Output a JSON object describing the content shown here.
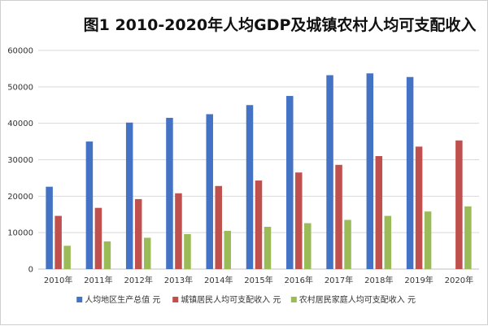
{
  "chart_data": {
    "type": "bar",
    "title": "图1 2010-2020年人均GDP及城镇农村人均可支配收入",
    "xlabel": "",
    "ylabel": "",
    "categories": [
      "2010年",
      "2011年",
      "2012年",
      "2013年",
      "2014年",
      "2015年",
      "2016年",
      "2017年",
      "2018年",
      "2019年",
      "2020年"
    ],
    "ylim": [
      0,
      60000
    ],
    "yticks": [
      0,
      10000,
      20000,
      30000,
      40000,
      50000,
      60000
    ],
    "grid": true,
    "legend_position": "bottom",
    "series": [
      {
        "name": "人均地区生产总值 元",
        "color": "#4472c4",
        "values": [
          22600,
          35000,
          40200,
          41500,
          42500,
          45000,
          47500,
          53200,
          53700,
          52700,
          null
        ]
      },
      {
        "name": "城镇居民人均可支配收入 元",
        "color": "#c0504d",
        "values": [
          14600,
          16800,
          19200,
          20800,
          22800,
          24300,
          26500,
          28600,
          31000,
          33600,
          35300
        ]
      },
      {
        "name": "农村居民家庭人均可支配收入 元",
        "color": "#9bbb59",
        "values": [
          6400,
          7600,
          8600,
          9600,
          10500,
          11600,
          12600,
          13500,
          14600,
          15800,
          17200
        ]
      }
    ]
  }
}
